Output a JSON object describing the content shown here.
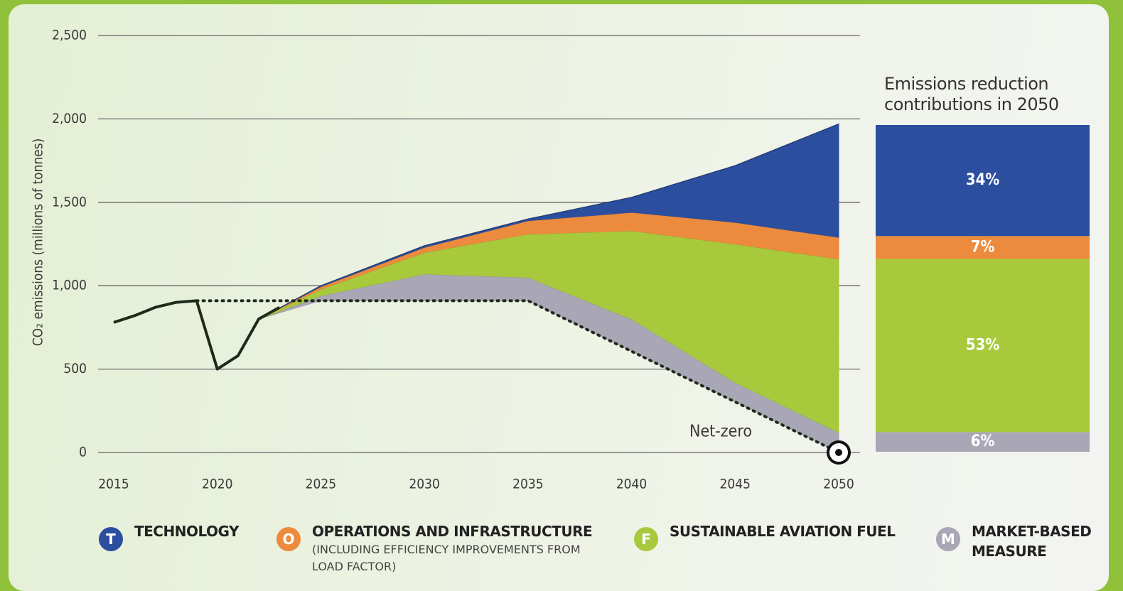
{
  "chart_data": [
    {
      "type": "stacked_area",
      "y_label": "CO₂ emissions (millions of tonnes)",
      "ylim": [
        0,
        2500
      ],
      "yticks": [
        0,
        500,
        {
          "value": 1000,
          "label": "1,000"
        },
        {
          "value": 1500,
          "label": "1,500"
        },
        {
          "value": 2000,
          "label": "2,000"
        },
        {
          "value": 2500,
          "label": "2,500"
        }
      ],
      "xlim": [
        2015,
        2050
      ],
      "xticks": [
        2015,
        2020,
        2025,
        2030,
        2035,
        2040,
        2045,
        2050
      ],
      "grid": true,
      "history": {
        "color": "#1e2a1a",
        "x": [
          2015,
          2016,
          2017,
          2018,
          2019,
          2020,
          2021,
          2022,
          2023
        ],
        "values": [
          780,
          820,
          870,
          900,
          910,
          500,
          580,
          800,
          870
        ]
      },
      "net_path": {
        "color": "#1e2a1a",
        "x": [
          2019,
          2035,
          2050
        ],
        "values": [
          910,
          910,
          0
        ]
      },
      "annotation": "Net-zero",
      "x": [
        2022,
        2025,
        2030,
        2035,
        2040,
        2045,
        2050
      ],
      "baseline": [
        800,
        910,
        910,
        910,
        607,
        303,
        0
      ],
      "series": [
        {
          "name": "MARKET-BASED MEASURE",
          "icon": "M",
          "color": "#a9a7b6",
          "values": [
            0,
            30,
            160,
            140,
            193,
            117,
            120
          ]
        },
        {
          "name": "SUSTAINABLE AVIATION FUEL",
          "icon": "F",
          "color": "#a9c93c",
          "values": [
            0,
            40,
            130,
            260,
            530,
            830,
            1040
          ]
        },
        {
          "name": "OPERATIONS AND INFRASTRUCTURE",
          "detail": "(INCLUDING EFFICIENCY IMPROVEMENTS FROM LOAD FACTOR)",
          "icon": "O",
          "color": "#ec8b3d",
          "values": [
            0,
            15,
            30,
            80,
            110,
            130,
            130
          ]
        },
        {
          "name": "TECHNOLOGY",
          "icon": "T",
          "color": "#2c4e9f",
          "values": [
            0,
            5,
            10,
            10,
            90,
            340,
            680
          ]
        }
      ]
    },
    {
      "type": "stacked_bar",
      "title": "Emissions reduction contributions in 2050",
      "series": [
        {
          "color": "#2c4e9f",
          "values": [
            34
          ],
          "value_labels": [
            "34%"
          ]
        },
        {
          "color": "#ec8b3d",
          "values": [
            7
          ],
          "value_labels": [
            "7%"
          ]
        },
        {
          "color": "#a9c93c",
          "values": [
            53
          ],
          "value_labels": [
            "53%"
          ]
        },
        {
          "color": "#a9a7b6",
          "values": [
            6
          ],
          "value_labels": [
            "6%"
          ]
        }
      ]
    }
  ]
}
